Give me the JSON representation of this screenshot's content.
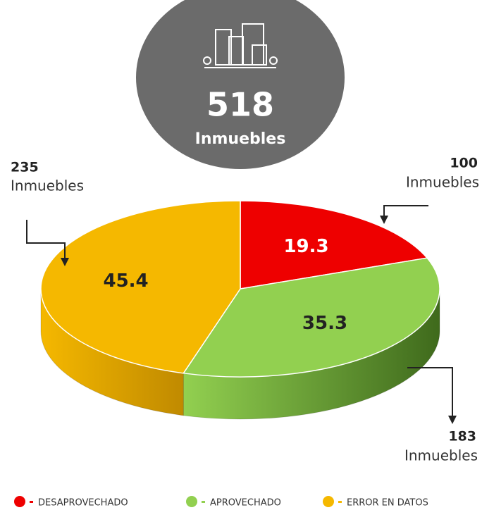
{
  "chart_data": {
    "type": "pie",
    "total": {
      "value": "518",
      "label": "Inmuebles"
    },
    "categories": [
      "DESAPROVECHADO",
      "APROVECHADO",
      "ERROR EN DATOS"
    ],
    "values": [
      19.3,
      35.3,
      45.4
    ],
    "colors": [
      "#ee0000",
      "#92d050",
      "#f5b800"
    ],
    "side_colors": [
      "#a00000",
      "#3f6a1c",
      "#c08a00"
    ],
    "value_label_colors": [
      "#ffffff",
      "#222222",
      "#222222"
    ],
    "annotations": [
      {
        "count": "100",
        "label": "Inmuebles"
      },
      {
        "count": "183",
        "label": "Inmuebles"
      },
      {
        "count": "235",
        "label": "Inmuebles"
      }
    ]
  }
}
